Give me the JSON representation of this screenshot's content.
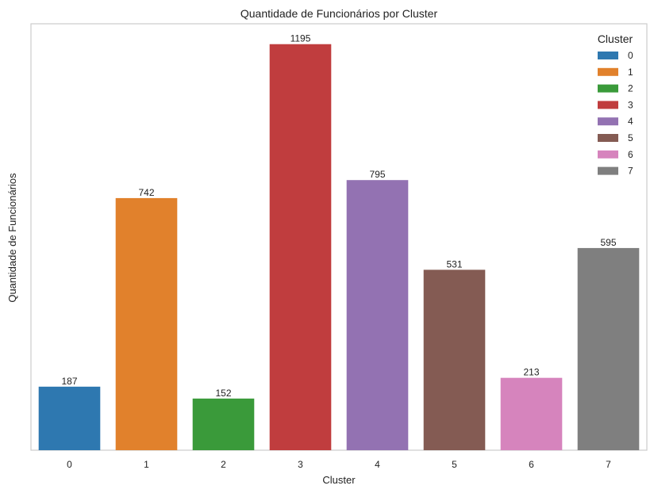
{
  "chart_data": {
    "type": "bar",
    "title": "Quantidade de Funcionários por Cluster",
    "xlabel": "Cluster",
    "ylabel": "Quantidade de Funcionários",
    "categories": [
      "0",
      "1",
      "2",
      "3",
      "4",
      "5",
      "6",
      "7"
    ],
    "values": [
      187,
      742,
      152,
      1195,
      795,
      531,
      213,
      595
    ],
    "colors": [
      "#2e78b0",
      "#e1812c",
      "#3a9a3a",
      "#c03d3e",
      "#9372b2",
      "#845b53",
      "#d684bd",
      "#7f7f7f"
    ],
    "ylim": [
      0,
      1255
    ],
    "grid": false,
    "legend": {
      "title": "Cluster",
      "placement": "top-right",
      "entries": [
        "0",
        "1",
        "2",
        "3",
        "4",
        "5",
        "6",
        "7"
      ]
    }
  }
}
